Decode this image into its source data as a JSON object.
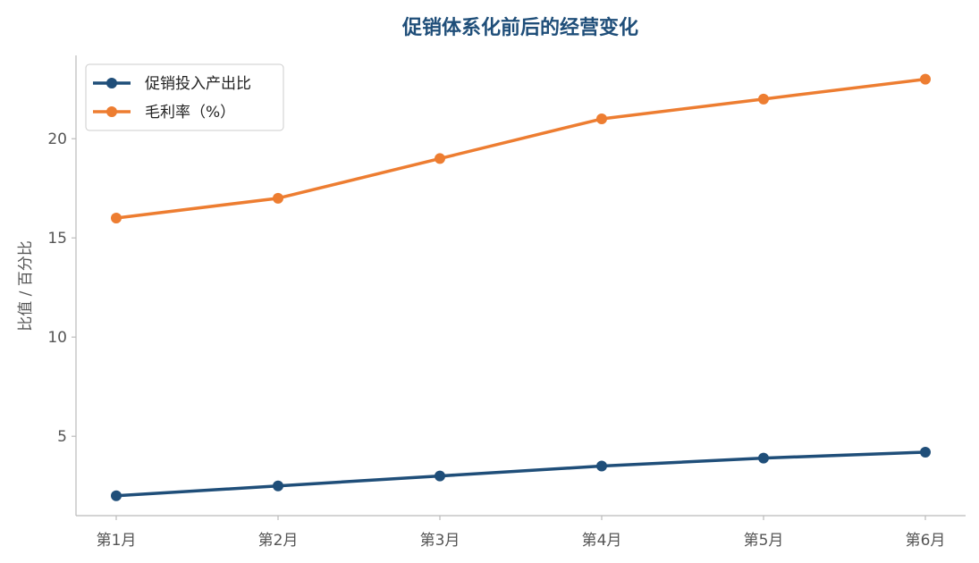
{
  "chart_data": {
    "type": "line",
    "title": "促销体系化前后的经营变化",
    "xlabel": "",
    "ylabel": "比值 / 百分比",
    "categories": [
      "第1月",
      "第2月",
      "第3月",
      "第4月",
      "第5月",
      "第6月"
    ],
    "ylim": [
      1.0,
      24.2
    ],
    "yticks": [
      5,
      10,
      15,
      20
    ],
    "grid": false,
    "legend_position": "top-left",
    "series": [
      {
        "name": "促销投入产出比",
        "color": "#1f4e79",
        "values": [
          2.0,
          2.5,
          3.0,
          3.5,
          3.9,
          4.2
        ]
      },
      {
        "name": "毛利率（%）",
        "color": "#ed7d31",
        "values": [
          16,
          17,
          19,
          21,
          22,
          23
        ]
      }
    ]
  }
}
